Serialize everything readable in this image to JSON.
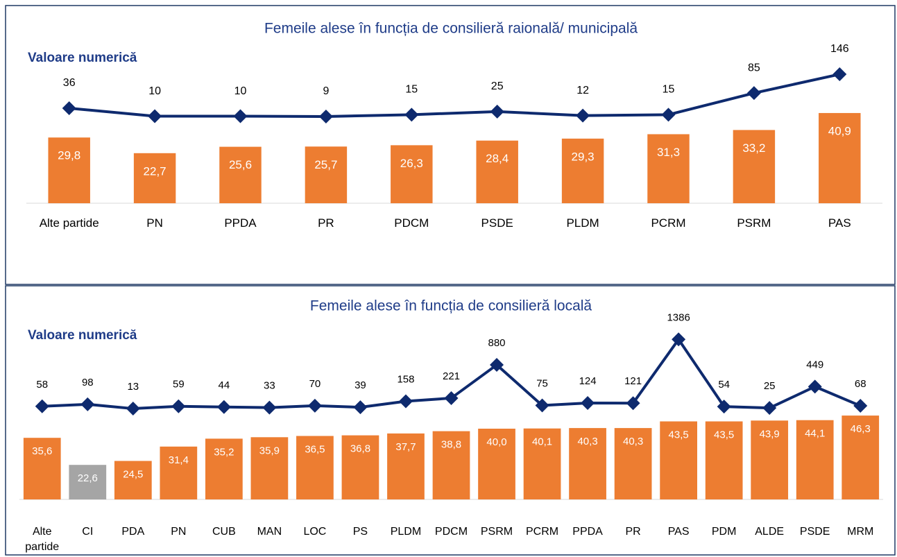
{
  "chart_data": [
    {
      "type": "bar-line",
      "title": "Femeile alese în funcția de consilieră raională/ municipală",
      "label": "Valoare numerică",
      "categories": [
        "Alte partide",
        "PN",
        "PPDA",
        "PR",
        "PDCM",
        "PSDE",
        "PLDM",
        "PCRM",
        "PSRM",
        "PAS"
      ],
      "series": [
        {
          "type": "bar",
          "color": "#ed7d31",
          "values": [
            29.8,
            22.7,
            25.6,
            25.7,
            26.3,
            28.4,
            29.3,
            31.3,
            33.2,
            40.9
          ],
          "value_labels": [
            "29,8",
            "22,7",
            "25,6",
            "25,7",
            "26,3",
            "28,4",
            "29,3",
            "31,3",
            "33,2",
            "40,9"
          ]
        },
        {
          "type": "line",
          "color": "#0e2a6e",
          "axis": "y2",
          "values": [
            36,
            10,
            10,
            9,
            15,
            25,
            12,
            15,
            85,
            146
          ]
        }
      ],
      "ylim": [
        0,
        50
      ],
      "y2lim": [
        0,
        300
      ]
    },
    {
      "type": "bar-line",
      "title": "Femeile alese în funcția de consilieră locală",
      "label": "Valoare numerică",
      "categories": [
        "Alte partide",
        "CI",
        "PDA",
        "PN",
        "CUB",
        "MAN",
        "LOC",
        "PS",
        "PLDM",
        "PDCM",
        "PSRM",
        "PCRM",
        "PPDA",
        "PR",
        "PAS",
        "PDM",
        "ALDE",
        "PSDE",
        "MRM"
      ],
      "series": [
        {
          "type": "bar",
          "color": "#ed7d31",
          "colors": [
            "#ed7d31",
            "#a5a5a5",
            "#ed7d31",
            "#ed7d31",
            "#ed7d31",
            "#ed7d31",
            "#ed7d31",
            "#ed7d31",
            "#ed7d31",
            "#ed7d31",
            "#ed7d31",
            "#ed7d31",
            "#ed7d31",
            "#ed7d31",
            "#ed7d31",
            "#ed7d31",
            "#ed7d31",
            "#ed7d31",
            "#ed7d31"
          ],
          "values": [
            35.6,
            22.6,
            24.5,
            31.4,
            35.2,
            35.9,
            36.5,
            36.8,
            37.7,
            38.8,
            40.0,
            40.1,
            40.3,
            40.3,
            43.5,
            43.5,
            43.9,
            44.1,
            46.3
          ],
          "value_labels": [
            "35,6",
            "22,6",
            "24,5",
            "31,4",
            "35,2",
            "35,9",
            "36,5",
            "36,8",
            "37,7",
            "38,8",
            "40,0",
            "40,1",
            "40,3",
            "40,3",
            "43,5",
            "43,5",
            "43,9",
            "44,1",
            "46,3"
          ]
        },
        {
          "type": "line",
          "color": "#0e2a6e",
          "axis": "y2",
          "values": [
            58,
            98,
            13,
            59,
            44,
            33,
            70,
            39,
            158,
            221,
            880,
            75,
            124,
            121,
            1386,
            54,
            25,
            449,
            68
          ]
        }
      ],
      "ylim": [
        6,
        50
      ],
      "y2lim": [
        0,
        1500
      ]
    }
  ]
}
